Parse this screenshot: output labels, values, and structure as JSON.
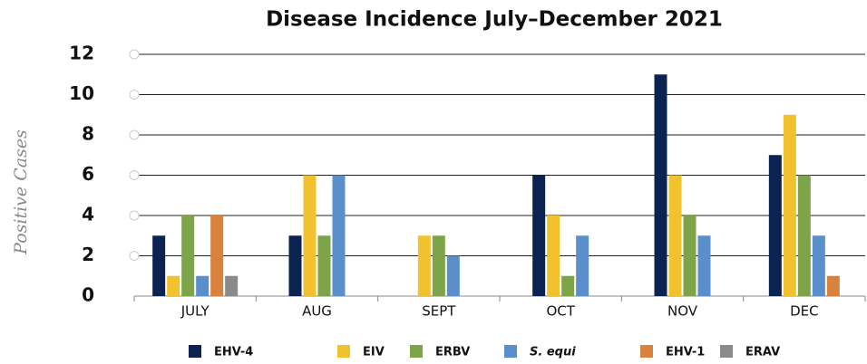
{
  "chart_data": {
    "type": "bar",
    "title": "Disease Incidence July–December 2021",
    "y_label": "Positive Cases",
    "categories": [
      "JULY",
      "AUG",
      "SEPT",
      "OCT",
      "NOV",
      "DEC"
    ],
    "series": [
      {
        "name": "EHV-4",
        "color": "#0b2350",
        "values": [
          3,
          3,
          null,
          6,
          11,
          7
        ]
      },
      {
        "name": "EIV",
        "color": "#f2c12e",
        "values": [
          1,
          6,
          3,
          4,
          6,
          9
        ]
      },
      {
        "name": "ERBV",
        "color": "#7ea44a",
        "values": [
          4,
          3,
          3,
          1,
          4,
          6
        ]
      },
      {
        "name": "S. equi",
        "color": "#5b8fcc",
        "values": [
          1,
          6,
          2,
          3,
          3,
          3
        ]
      },
      {
        "name": "EHV-1",
        "color": "#d9823d",
        "values": [
          4,
          null,
          null,
          null,
          null,
          1
        ]
      },
      {
        "name": "ERAV",
        "color": "#8a8a8a",
        "values": [
          1,
          null,
          null,
          null,
          null,
          null
        ]
      }
    ],
    "ylim": [
      0,
      12
    ],
    "yticks": [
      0,
      2,
      4,
      6,
      8,
      10,
      12
    ],
    "grid": true,
    "legend": "bottom"
  }
}
